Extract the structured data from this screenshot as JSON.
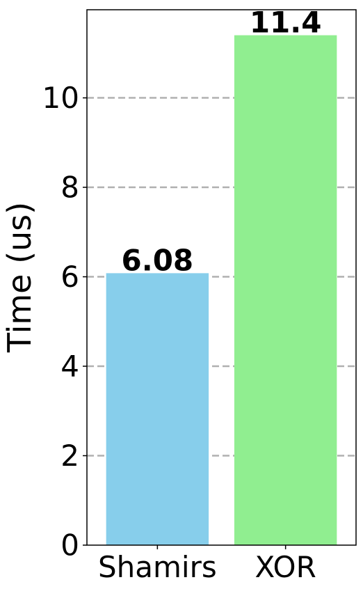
{
  "chart_data": {
    "type": "bar",
    "title": "",
    "xlabel": "",
    "ylabel": "Time (us)",
    "categories": [
      "Shamirs",
      "XOR"
    ],
    "values": [
      6.08,
      11.4
    ],
    "value_labels": [
      "6.08",
      "11.4"
    ],
    "colors": [
      "#87ceeb",
      "#90ee90"
    ],
    "ylim": [
      0,
      11.97
    ],
    "yticks": [
      0,
      2,
      4,
      6,
      8,
      10
    ],
    "ytick_labels": [
      "0",
      "2",
      "4",
      "6",
      "8",
      "10"
    ],
    "grid": {
      "axis": "y",
      "style": "dashed",
      "color": "#b0b0b0"
    },
    "legend": "none"
  }
}
